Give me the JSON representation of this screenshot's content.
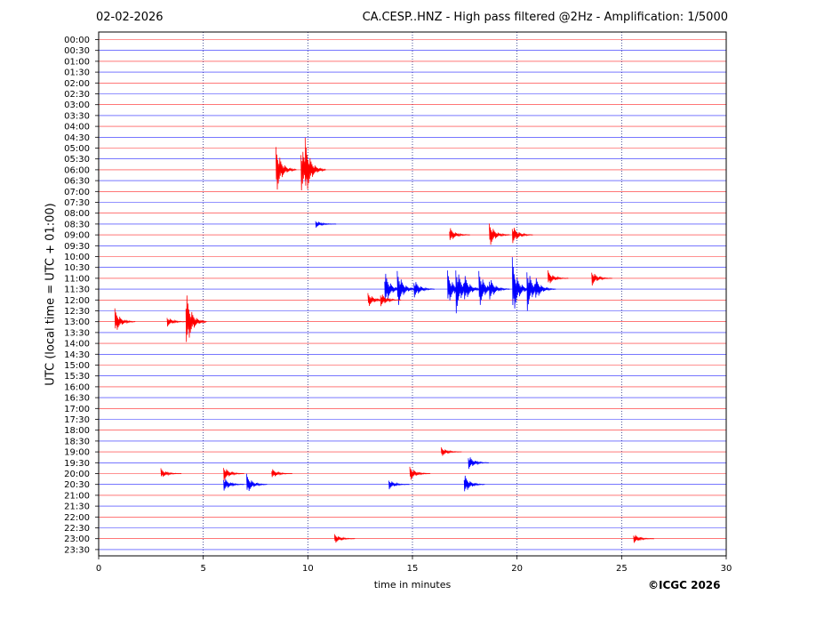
{
  "header": {
    "date": "02-02-2026",
    "title": "CA.CESP..HNZ - High pass filtered @2Hz - Amplification: 1/5000"
  },
  "footer": {
    "credit": "©ICGC 2026"
  },
  "chart_data": {
    "type": "line",
    "title": "CA.CESP..HNZ - High pass filtered @2Hz - Amplification: 1/5000",
    "xlabel": "time in minutes",
    "ylabel": "UTC (local time = UTC + 01:00)",
    "xlim": [
      0,
      30
    ],
    "x_ticks": [
      0,
      5,
      10,
      15,
      20,
      25,
      30
    ],
    "vertical_gridlines_at": [
      5,
      10,
      15,
      20,
      25
    ],
    "grid": true,
    "trace_colors": [
      "#ff0000",
      "#0000ff"
    ],
    "rows": [
      "00:00",
      "00:30",
      "01:00",
      "01:30",
      "02:00",
      "02:30",
      "03:00",
      "03:30",
      "04:00",
      "04:30",
      "05:00",
      "05:30",
      "06:00",
      "06:30",
      "07:00",
      "07:30",
      "08:00",
      "08:30",
      "09:00",
      "09:30",
      "10:00",
      "10:30",
      "11:00",
      "11:30",
      "12:00",
      "12:30",
      "13:00",
      "13:30",
      "14:00",
      "14:30",
      "15:00",
      "15:30",
      "16:00",
      "16:30",
      "17:00",
      "17:30",
      "18:00",
      "18:30",
      "19:00",
      "19:30",
      "20:00",
      "20:30",
      "21:00",
      "21:30",
      "22:00",
      "22:30",
      "23:00",
      "23:30"
    ],
    "events": [
      {
        "row": "05:30",
        "minute": 8.6,
        "amplitude": 0.0
      },
      {
        "row": "06:00",
        "minute": 8.6,
        "amplitude": 1.0
      },
      {
        "row": "06:00",
        "minute": 9.8,
        "amplitude": 1.0
      },
      {
        "row": "06:00",
        "minute": 10.0,
        "amplitude": 1.2
      },
      {
        "row": "08:30",
        "minute": 10.5,
        "amplitude": 0.15
      },
      {
        "row": "09:00",
        "minute": 16.9,
        "amplitude": 0.3
      },
      {
        "row": "09:00",
        "minute": 18.8,
        "amplitude": 0.5
      },
      {
        "row": "09:00",
        "minute": 19.9,
        "amplitude": 0.4
      },
      {
        "row": "11:00",
        "minute": 21.6,
        "amplitude": 0.3
      },
      {
        "row": "11:00",
        "minute": 23.7,
        "amplitude": 0.3
      },
      {
        "row": "11:30",
        "minute": 13.8,
        "amplitude": 0.7
      },
      {
        "row": "11:30",
        "minute": 14.4,
        "amplitude": 0.8
      },
      {
        "row": "11:30",
        "minute": 15.2,
        "amplitude": 0.4
      },
      {
        "row": "11:30",
        "minute": 16.8,
        "amplitude": 0.7
      },
      {
        "row": "11:30",
        "minute": 17.2,
        "amplitude": 1.0
      },
      {
        "row": "11:30",
        "minute": 17.6,
        "amplitude": 0.6
      },
      {
        "row": "11:30",
        "minute": 18.3,
        "amplitude": 0.8
      },
      {
        "row": "11:30",
        "minute": 18.8,
        "amplitude": 0.5
      },
      {
        "row": "11:30",
        "minute": 19.9,
        "amplitude": 1.2
      },
      {
        "row": "11:30",
        "minute": 20.6,
        "amplitude": 0.9
      },
      {
        "row": "11:30",
        "minute": 21.0,
        "amplitude": 0.5
      },
      {
        "row": "12:00",
        "minute": 13.0,
        "amplitude": 0.3
      },
      {
        "row": "12:00",
        "minute": 13.6,
        "amplitude": 0.3
      },
      {
        "row": "13:00",
        "minute": 0.9,
        "amplitude": 0.5
      },
      {
        "row": "13:00",
        "minute": 3.4,
        "amplitude": 0.2
      },
      {
        "row": "13:00",
        "minute": 4.3,
        "amplitude": 1.2
      },
      {
        "row": "19:00",
        "minute": 16.5,
        "amplitude": 0.2
      },
      {
        "row": "19:30",
        "minute": 17.8,
        "amplitude": 0.3
      },
      {
        "row": "20:00",
        "minute": 3.1,
        "amplitude": 0.2
      },
      {
        "row": "20:00",
        "minute": 6.1,
        "amplitude": 0.3
      },
      {
        "row": "20:00",
        "minute": 8.4,
        "amplitude": 0.2
      },
      {
        "row": "20:00",
        "minute": 15.0,
        "amplitude": 0.3
      },
      {
        "row": "20:30",
        "minute": 6.1,
        "amplitude": 0.3
      },
      {
        "row": "20:30",
        "minute": 7.2,
        "amplitude": 0.4
      },
      {
        "row": "20:30",
        "minute": 14.0,
        "amplitude": 0.2
      },
      {
        "row": "20:30",
        "minute": 17.6,
        "amplitude": 0.4
      },
      {
        "row": "23:00",
        "minute": 11.4,
        "amplitude": 0.2
      },
      {
        "row": "23:00",
        "minute": 25.7,
        "amplitude": 0.2
      }
    ]
  }
}
